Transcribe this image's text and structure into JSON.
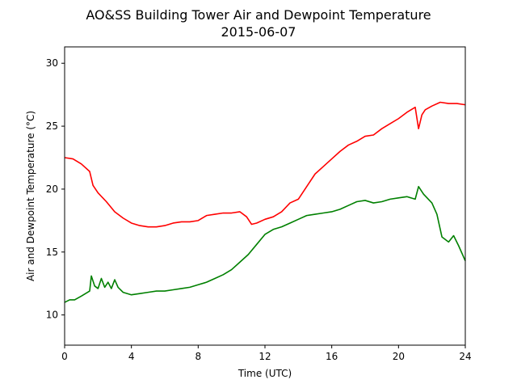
{
  "chart_data": {
    "type": "line",
    "title": "AO&SS Building Tower Air and Dewpoint Temperature",
    "subtitle": "2015-06-07",
    "xlabel": "Time (UTC)",
    "ylabel": "Air and Dewpoint Temperature (°C)",
    "xlim": [
      0,
      24
    ],
    "ylim": [
      7.6,
      31.3
    ],
    "xticks": [
      0,
      4,
      8,
      12,
      16,
      20,
      24
    ],
    "yticks": [
      10,
      15,
      20,
      25,
      30
    ],
    "grid": false,
    "series": [
      {
        "color": "#ff0000",
        "x": [
          0,
          0.5,
          1.0,
          1.5,
          1.7,
          2.0,
          2.5,
          3.0,
          3.5,
          4.0,
          4.5,
          5.0,
          5.5,
          6.0,
          6.5,
          7.0,
          7.5,
          8.0,
          8.5,
          9.0,
          9.5,
          10.0,
          10.5,
          10.9,
          11.2,
          11.5,
          12.0,
          12.5,
          13.0,
          13.5,
          14.0,
          14.5,
          15.0,
          15.5,
          16.0,
          16.5,
          17.0,
          17.5,
          18.0,
          18.5,
          19.0,
          19.5,
          20.0,
          20.5,
          21.0,
          21.2,
          21.4,
          21.6,
          22.0,
          22.5,
          23.0,
          23.5,
          24.0
        ],
        "y": [
          22.5,
          22.4,
          22.0,
          21.4,
          20.3,
          19.7,
          19.0,
          18.2,
          17.7,
          17.3,
          17.1,
          17.0,
          17.0,
          17.1,
          17.3,
          17.4,
          17.4,
          17.5,
          17.9,
          18.0,
          18.1,
          18.1,
          18.2,
          17.8,
          17.2,
          17.3,
          17.6,
          17.8,
          18.2,
          18.9,
          19.2,
          20.2,
          21.2,
          21.8,
          22.4,
          23.0,
          23.5,
          23.8,
          24.2,
          24.3,
          24.8,
          25.2,
          25.6,
          26.1,
          26.5,
          24.8,
          25.9,
          26.3,
          26.6,
          26.9,
          26.8,
          26.8,
          26.7
        ]
      },
      {
        "color": "#008000",
        "x": [
          0,
          0.3,
          0.6,
          1.0,
          1.5,
          1.6,
          1.8,
          2.0,
          2.2,
          2.4,
          2.6,
          2.8,
          3.0,
          3.2,
          3.5,
          4.0,
          4.5,
          5.0,
          5.5,
          6.0,
          6.5,
          7.0,
          7.5,
          8.0,
          8.5,
          9.0,
          9.5,
          10.0,
          10.5,
          11.0,
          11.5,
          12.0,
          12.5,
          13.0,
          13.5,
          14.0,
          14.5,
          15.0,
          15.5,
          16.0,
          16.5,
          17.0,
          17.5,
          18.0,
          18.5,
          19.0,
          19.5,
          20.0,
          20.5,
          21.0,
          21.2,
          21.5,
          22.0,
          22.3,
          22.6,
          23.0,
          23.3,
          23.6,
          24.0
        ],
        "y": [
          11.0,
          11.2,
          11.2,
          11.5,
          11.9,
          13.1,
          12.3,
          12.1,
          12.9,
          12.2,
          12.6,
          12.1,
          12.8,
          12.2,
          11.8,
          11.6,
          11.7,
          11.8,
          11.9,
          11.9,
          12.0,
          12.1,
          12.2,
          12.4,
          12.6,
          12.9,
          13.2,
          13.6,
          14.2,
          14.8,
          15.6,
          16.4,
          16.8,
          17.0,
          17.3,
          17.6,
          17.9,
          18.0,
          18.1,
          18.2,
          18.4,
          18.7,
          19.0,
          19.1,
          18.9,
          19.0,
          19.2,
          19.3,
          19.4,
          19.2,
          20.2,
          19.6,
          18.9,
          18.0,
          16.2,
          15.8,
          16.3,
          15.5,
          14.3
        ]
      }
    ]
  }
}
